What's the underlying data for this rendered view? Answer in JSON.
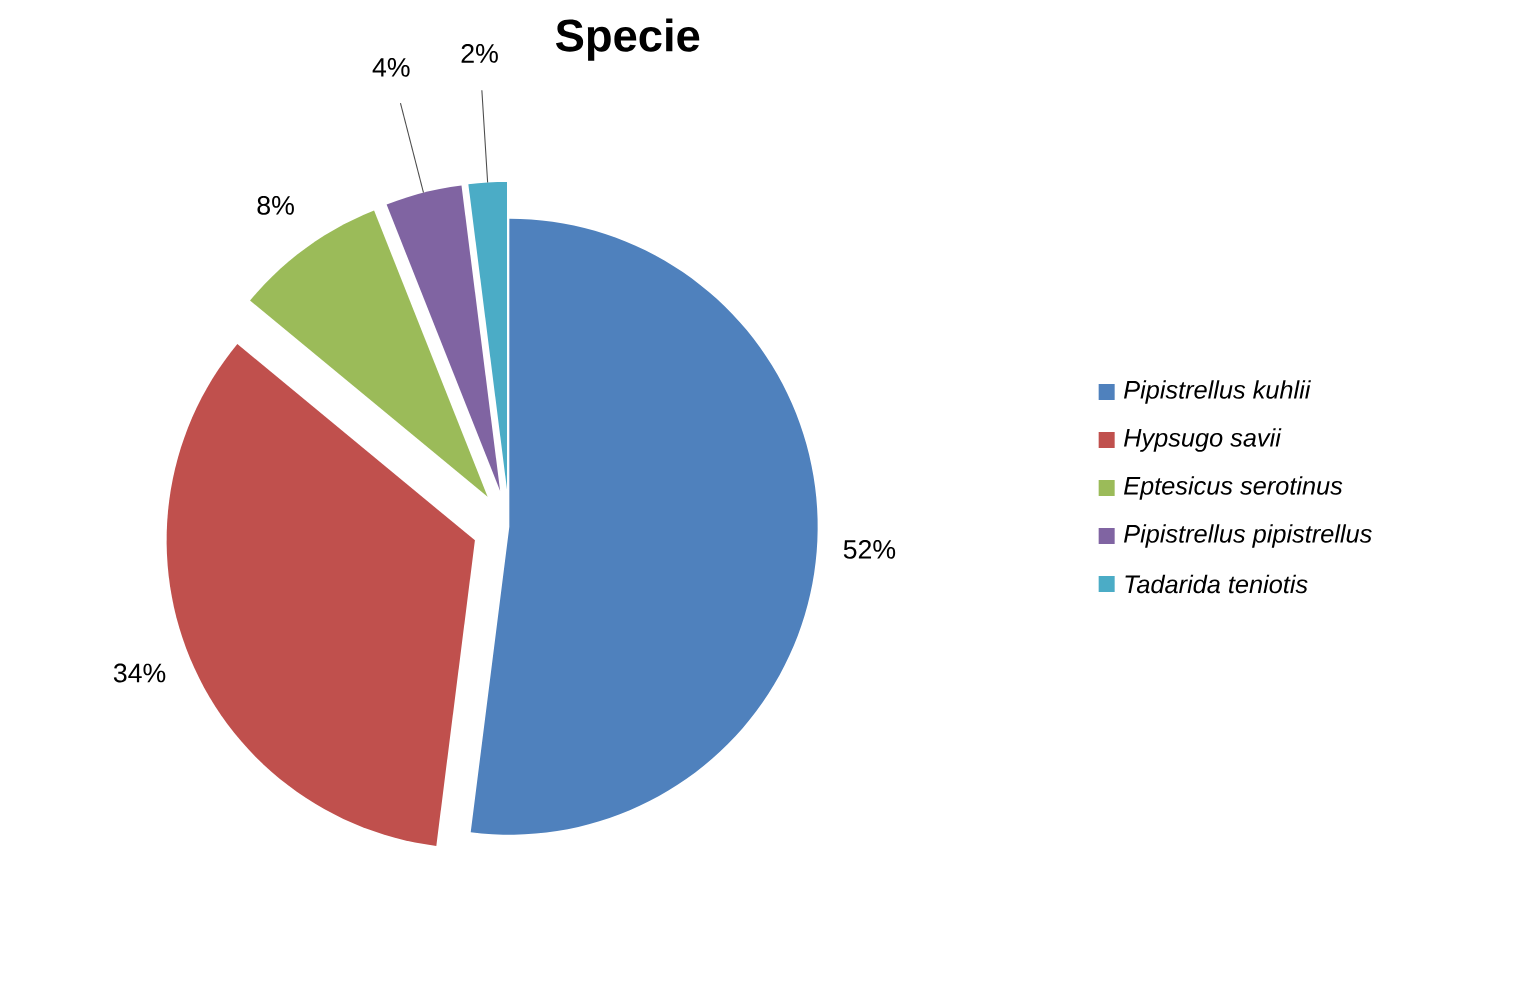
{
  "chart_data": {
    "type": "pie",
    "title": "Specie",
    "categories": [
      "*Pipistrellus kuhlii*",
      "*Hypsugo savii*",
      "*Eptesicus serotinus*",
      "*Pipistrellus pipistrellus*",
      "*Tadarida teniotis*"
    ],
    "values": [
      52,
      34,
      8,
      4,
      2
    ],
    "value_labels": [
      "52%",
      "34%",
      "8%",
      "4%",
      "2%"
    ],
    "colors": [
      "#4f81bd",
      "#c0504d",
      "#9bbb59",
      "#8064a2",
      "#4bacc6"
    ],
    "legend": "right"
  }
}
